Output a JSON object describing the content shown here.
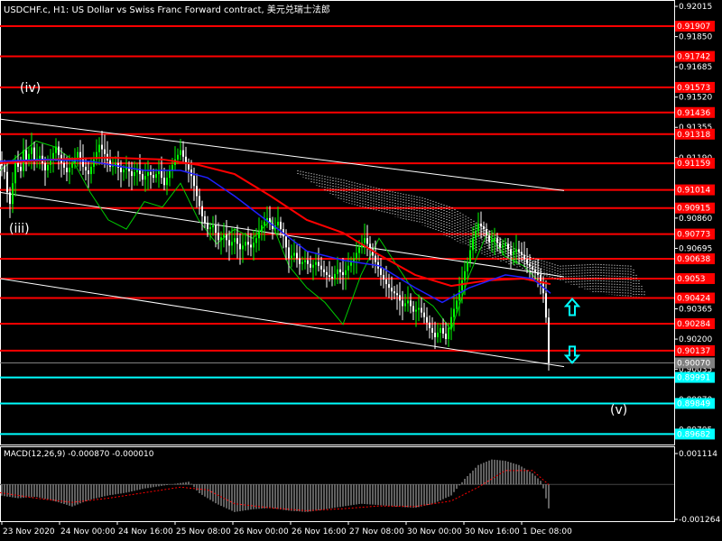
{
  "window": {
    "title": "USDCHF.c, H1:  US Dollar vs Swiss Franc Forward contract, 美元兑瑞士法郎"
  },
  "macd_panel": {
    "title": "MACD(12,26,9) -0.000870 -0.000010"
  },
  "colors": {
    "background": "#000000",
    "bull_candle": "#00ff00",
    "bear_candle": "#ffffff",
    "resistance_lines": "#ff0000",
    "support_lines": "#00ffff",
    "trend_channel": "#ffffff",
    "ma_fast": "#2020ff",
    "ma_slow": "#ff0000",
    "oscillator_line": "#00cc00",
    "cloud": "#ffffff",
    "arrow": "#00ffff",
    "price_tag_current": "#808080"
  },
  "chart_data": [
    {
      "type": "candlestick",
      "symbol": "USDCHF.c",
      "timeframe": "H1",
      "x_tick_labels": [
        "23 Nov 2020",
        "24 Nov 00:00",
        "24 Nov 16:00",
        "25 Nov 08:00",
        "26 Nov 00:00",
        "26 Nov 16:00",
        "27 Nov 08:00",
        "30 Nov 00:00",
        "30 Nov 16:00",
        "1 Dec 08:00"
      ],
      "y_tick_labels": [
        "0.92015",
        "0.91850",
        "0.91685",
        "0.91520",
        "0.91355",
        "0.91190",
        "0.91025",
        "0.90860",
        "0.90695",
        "0.90530",
        "0.90365",
        "0.90200",
        "0.90035",
        "0.89870",
        "0.89705"
      ],
      "ylim": [
        0.8962,
        0.9203
      ],
      "current_price": "0.90070",
      "horizontal_levels": [
        {
          "value": 0.91907,
          "label": "0.91907",
          "color": "#ff0000"
        },
        {
          "value": 0.91742,
          "label": "0.91742",
          "color": "#ff0000"
        },
        {
          "value": 0.91573,
          "label": "0.91573",
          "color": "#ff0000"
        },
        {
          "value": 0.91436,
          "label": "0.91436",
          "color": "#ff0000"
        },
        {
          "value": 0.91318,
          "label": "0.91318",
          "color": "#ff0000"
        },
        {
          "value": 0.91159,
          "label": "0.91159",
          "color": "#ff0000"
        },
        {
          "value": 0.91014,
          "label": "0.91014",
          "color": "#ff0000"
        },
        {
          "value": 0.90915,
          "label": "0.90915",
          "color": "#ff0000"
        },
        {
          "value": 0.90773,
          "label": "0.90773",
          "color": "#ff0000"
        },
        {
          "value": 0.90638,
          "label": "0.90638",
          "color": "#ff0000"
        },
        {
          "value": 0.9053,
          "label": "0.9053",
          "color": "#ff0000"
        },
        {
          "value": 0.90424,
          "label": "0.90424",
          "color": "#ff0000"
        },
        {
          "value": 0.90284,
          "label": "0.90284",
          "color": "#ff0000"
        },
        {
          "value": 0.90137,
          "label": "0.90137",
          "color": "#ff0000"
        },
        {
          "value": 0.89991,
          "label": "0.89991",
          "color": "#00ffff"
        },
        {
          "value": 0.89849,
          "label": "0.89849",
          "color": "#00ffff"
        },
        {
          "value": 0.89682,
          "label": "0.89682",
          "color": "#00ffff"
        }
      ],
      "wave_labels": [
        "(iv)",
        "(iii)",
        "(v)"
      ],
      "arrows": [
        {
          "direction": "up",
          "price": 0.9037
        },
        {
          "direction": "down",
          "price": 0.9012
        }
      ],
      "price_path": [
        [
          0,
          0.9117
        ],
        [
          6,
          0.911
        ],
        [
          10,
          0.909
        ],
        [
          14,
          0.9105
        ],
        [
          18,
          0.912
        ],
        [
          22,
          0.9108
        ],
        [
          26,
          0.9123
        ],
        [
          30,
          0.9115
        ],
        [
          34,
          0.9127
        ],
        [
          38,
          0.9117
        ],
        [
          44,
          0.912
        ],
        [
          50,
          0.9112
        ],
        [
          56,
          0.9118
        ],
        [
          62,
          0.9125
        ],
        [
          68,
          0.9116
        ],
        [
          74,
          0.9111
        ],
        [
          80,
          0.9116
        ],
        [
          86,
          0.9122
        ],
        [
          92,
          0.9114
        ],
        [
          98,
          0.911
        ],
        [
          104,
          0.9118
        ],
        [
          110,
          0.9126
        ],
        [
          116,
          0.9121
        ],
        [
          122,
          0.9114
        ],
        [
          128,
          0.9116
        ],
        [
          134,
          0.9111
        ],
        [
          140,
          0.9114
        ],
        [
          146,
          0.9109
        ],
        [
          152,
          0.9113
        ],
        [
          158,
          0.9107
        ],
        [
          164,
          0.9111
        ],
        [
          170,
          0.9108
        ],
        [
          176,
          0.9112
        ],
        [
          182,
          0.9104
        ],
        [
          188,
          0.9112
        ],
        [
          194,
          0.9118
        ],
        [
          200,
          0.9123
        ],
        [
          206,
          0.9116
        ],
        [
          212,
          0.9109
        ],
        [
          218,
          0.9098
        ],
        [
          224,
          0.9087
        ],
        [
          230,
          0.908
        ],
        [
          236,
          0.9082
        ],
        [
          242,
          0.9074
        ],
        [
          248,
          0.9077
        ],
        [
          254,
          0.9071
        ],
        [
          260,
          0.9075
        ],
        [
          266,
          0.9069
        ],
        [
          272,
          0.9073
        ],
        [
          278,
          0.907
        ],
        [
          284,
          0.9075
        ],
        [
          290,
          0.9082
        ],
        [
          296,
          0.9086
        ],
        [
          302,
          0.908
        ],
        [
          308,
          0.9084
        ],
        [
          314,
          0.9076
        ],
        [
          320,
          0.9064
        ],
        [
          326,
          0.9067
        ],
        [
          332,
          0.9061
        ],
        [
          338,
          0.9063
        ],
        [
          344,
          0.9059
        ],
        [
          350,
          0.9062
        ],
        [
          356,
          0.9058
        ],
        [
          362,
          0.9055
        ],
        [
          368,
          0.9053
        ],
        [
          374,
          0.9058
        ],
        [
          380,
          0.9055
        ],
        [
          386,
          0.906
        ],
        [
          392,
          0.9064
        ],
        [
          398,
          0.907
        ],
        [
          404,
          0.9075
        ],
        [
          410,
          0.9069
        ],
        [
          416,
          0.9062
        ],
        [
          422,
          0.9055
        ],
        [
          428,
          0.905
        ],
        [
          434,
          0.9046
        ],
        [
          440,
          0.9044
        ],
        [
          446,
          0.9038
        ],
        [
          452,
          0.9041
        ],
        [
          458,
          0.9035
        ],
        [
          464,
          0.9037
        ],
        [
          470,
          0.9032
        ],
        [
          476,
          0.9026
        ],
        [
          482,
          0.9021
        ],
        [
          488,
          0.9026
        ],
        [
          494,
          0.902
        ],
        [
          500,
          0.9032
        ],
        [
          506,
          0.9041
        ],
        [
          512,
          0.9052
        ],
        [
          518,
          0.9062
        ],
        [
          524,
          0.9075
        ],
        [
          530,
          0.9083
        ],
        [
          536,
          0.908
        ],
        [
          542,
          0.9073
        ],
        [
          548,
          0.9075
        ],
        [
          554,
          0.907
        ],
        [
          560,
          0.9072
        ],
        [
          566,
          0.9066
        ],
        [
          572,
          0.9069
        ],
        [
          578,
          0.9066
        ],
        [
          584,
          0.9061
        ],
        [
          590,
          0.9058
        ],
        [
          596,
          0.9055
        ],
        [
          600,
          0.905
        ],
        [
          604,
          0.904
        ],
        [
          608,
          0.9007
        ]
      ],
      "ma_fast": [
        [
          0,
          0.9117
        ],
        [
          50,
          0.9118
        ],
        [
          100,
          0.9117
        ],
        [
          160,
          0.9112
        ],
        [
          200,
          0.9112
        ],
        [
          230,
          0.9108
        ],
        [
          260,
          0.9098
        ],
        [
          300,
          0.9083
        ],
        [
          340,
          0.9068
        ],
        [
          380,
          0.9063
        ],
        [
          420,
          0.906
        ],
        [
          460,
          0.9048
        ],
        [
          490,
          0.904
        ],
        [
          520,
          0.9048
        ],
        [
          560,
          0.9055
        ],
        [
          590,
          0.9053
        ],
        [
          610,
          0.9045
        ]
      ],
      "ma_slow": [
        [
          0,
          0.9116
        ],
        [
          60,
          0.9118
        ],
        [
          120,
          0.9119
        ],
        [
          180,
          0.9118
        ],
        [
          220,
          0.9115
        ],
        [
          260,
          0.911
        ],
        [
          300,
          0.9098
        ],
        [
          340,
          0.9085
        ],
        [
          380,
          0.9078
        ],
        [
          420,
          0.9066
        ],
        [
          460,
          0.9055
        ],
        [
          500,
          0.9049
        ],
        [
          540,
          0.9052
        ],
        [
          580,
          0.9053
        ],
        [
          610,
          0.905
        ]
      ],
      "oscillator_overlay": [
        [
          0,
          0.9112
        ],
        [
          20,
          0.912
        ],
        [
          40,
          0.9128
        ],
        [
          60,
          0.9125
        ],
        [
          80,
          0.9118
        ],
        [
          100,
          0.91
        ],
        [
          120,
          0.9085
        ],
        [
          140,
          0.908
        ],
        [
          160,
          0.9095
        ],
        [
          180,
          0.9092
        ],
        [
          200,
          0.9105
        ],
        [
          220,
          0.9085
        ],
        [
          240,
          0.9072
        ],
        [
          260,
          0.908
        ],
        [
          280,
          0.9075
        ],
        [
          300,
          0.9085
        ],
        [
          320,
          0.906
        ],
        [
          340,
          0.9048
        ],
        [
          360,
          0.904
        ],
        [
          380,
          0.9028
        ],
        [
          400,
          0.9055
        ],
        [
          420,
          0.9075
        ],
        [
          440,
          0.906
        ],
        [
          460,
          0.9045
        ],
        [
          480,
          0.9038
        ],
        [
          500,
          0.9025
        ],
        [
          520,
          0.9055
        ],
        [
          540,
          0.9078
        ],
        [
          560,
          0.9065
        ],
        [
          580,
          0.906
        ],
        [
          600,
          0.905
        ]
      ],
      "cloud_top": [
        [
          330,
          0.9112
        ],
        [
          380,
          0.9107
        ],
        [
          430,
          0.9101
        ],
        [
          470,
          0.9097
        ],
        [
          500,
          0.9092
        ],
        [
          540,
          0.908
        ],
        [
          580,
          0.9066
        ],
        [
          620,
          0.906
        ],
        [
          660,
          0.9061
        ],
        [
          700,
          0.906
        ],
        [
          715,
          0.9045
        ]
      ],
      "cloud_bottom": [
        [
          330,
          0.911
        ],
        [
          380,
          0.9095
        ],
        [
          430,
          0.9088
        ],
        [
          470,
          0.9082
        ],
        [
          500,
          0.9075
        ],
        [
          540,
          0.9065
        ],
        [
          580,
          0.9058
        ],
        [
          620,
          0.9052
        ],
        [
          660,
          0.9045
        ],
        [
          700,
          0.9043
        ],
        [
          715,
          0.9043
        ]
      ],
      "channel_lines": [
        {
          "from": [
            0,
            0.914
          ],
          "to": [
            625,
            0.9101
          ]
        },
        {
          "from": [
            0,
            0.91
          ],
          "to": [
            625,
            0.9054
          ]
        },
        {
          "from": [
            0,
            0.9053
          ],
          "to": [
            625,
            0.9005
          ]
        }
      ]
    },
    {
      "type": "histogram",
      "name": "MACD(12,26,9)",
      "y_tick_labels": [
        "0.001114",
        "-0.001264"
      ],
      "ylim": [
        -0.001264,
        0.001114
      ],
      "values": [
        [
          0,
          -0.0004
        ],
        [
          20,
          -0.0005
        ],
        [
          40,
          -0.00045
        ],
        [
          60,
          -0.0006
        ],
        [
          80,
          -0.0008
        ],
        [
          100,
          -0.00055
        ],
        [
          120,
          -0.0004
        ],
        [
          140,
          -0.0003
        ],
        [
          160,
          -0.00015
        ],
        [
          180,
          -5e-05
        ],
        [
          200,
          5e-05
        ],
        [
          210,
          0.0001
        ],
        [
          220,
          -0.0003
        ],
        [
          240,
          -0.0007
        ],
        [
          260,
          -0.001
        ],
        [
          280,
          -0.0009
        ],
        [
          300,
          -0.00085
        ],
        [
          320,
          -0.00095
        ],
        [
          340,
          -0.001
        ],
        [
          360,
          -0.0009
        ],
        [
          380,
          -0.0008
        ],
        [
          400,
          -0.0007
        ],
        [
          420,
          -0.00075
        ],
        [
          440,
          -0.0008
        ],
        [
          460,
          -0.00085
        ],
        [
          480,
          -0.0007
        ],
        [
          500,
          -0.0004
        ],
        [
          515,
          0.0002
        ],
        [
          530,
          0.0007
        ],
        [
          545,
          0.0009
        ],
        [
          560,
          0.00085
        ],
        [
          575,
          0.0007
        ],
        [
          590,
          0.0004
        ],
        [
          600,
          0.0001
        ],
        [
          608,
          -0.00087
        ]
      ],
      "signal": [
        [
          0,
          -0.0003
        ],
        [
          40,
          -0.0005
        ],
        [
          80,
          -0.00065
        ],
        [
          120,
          -0.0005
        ],
        [
          160,
          -0.0003
        ],
        [
          200,
          -0.0001
        ],
        [
          230,
          -0.0002
        ],
        [
          260,
          -0.0007
        ],
        [
          300,
          -0.00085
        ],
        [
          340,
          -0.00095
        ],
        [
          380,
          -0.00088
        ],
        [
          420,
          -0.00078
        ],
        [
          460,
          -0.0008
        ],
        [
          500,
          -0.0006
        ],
        [
          530,
          -0.0001
        ],
        [
          560,
          0.0005
        ],
        [
          590,
          0.0005
        ],
        [
          608,
          -1e-05
        ]
      ]
    }
  ]
}
